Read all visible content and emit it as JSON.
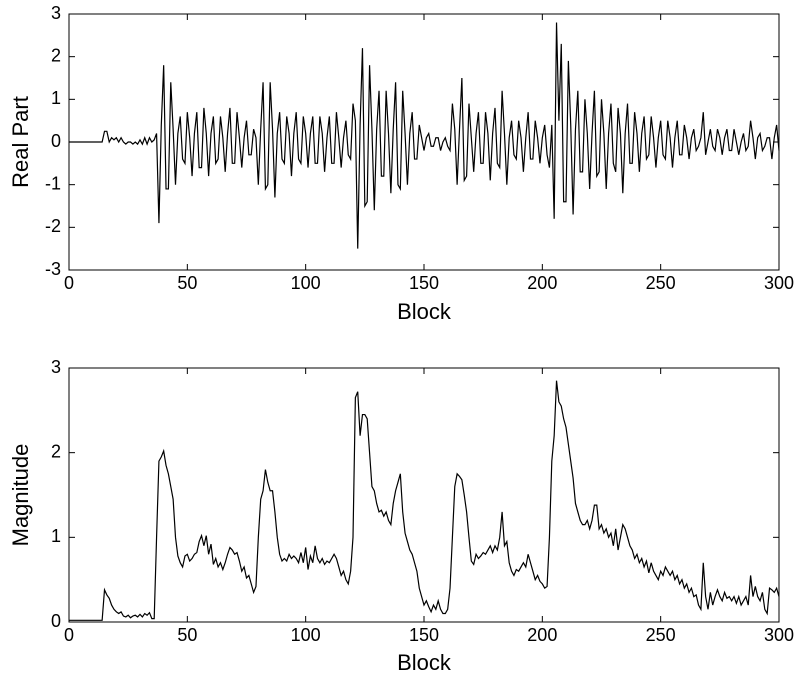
{
  "chart_data": [
    {
      "type": "line",
      "xlabel": "Block",
      "ylabel": "Real Part",
      "color": "#000000",
      "xlim": [
        0,
        300
      ],
      "ylim": [
        -3,
        3
      ],
      "xticks": [
        0,
        50,
        100,
        150,
        200,
        250,
        300
      ],
      "yticks": [
        -3,
        -2,
        -1,
        0,
        1,
        2,
        3
      ],
      "x": [
        0,
        1,
        2,
        3,
        4,
        5,
        6,
        7,
        8,
        9,
        10,
        11,
        12,
        13,
        14,
        15,
        16,
        17,
        18,
        19,
        20,
        21,
        22,
        23,
        24,
        25,
        26,
        27,
        28,
        29,
        30,
        31,
        32,
        33,
        34,
        35,
        36,
        37,
        38,
        39,
        40,
        41,
        42,
        43,
        44,
        45,
        46,
        47,
        48,
        49,
        50,
        51,
        52,
        53,
        54,
        55,
        56,
        57,
        58,
        59,
        60,
        61,
        62,
        63,
        64,
        65,
        66,
        67,
        68,
        69,
        70,
        71,
        72,
        73,
        74,
        75,
        76,
        77,
        78,
        79,
        80,
        81,
        82,
        83,
        84,
        85,
        86,
        87,
        88,
        89,
        90,
        91,
        92,
        93,
        94,
        95,
        96,
        97,
        98,
        99,
        100,
        101,
        102,
        103,
        104,
        105,
        106,
        107,
        108,
        109,
        110,
        111,
        112,
        113,
        114,
        115,
        116,
        117,
        118,
        119,
        120,
        121,
        122,
        123,
        124,
        125,
        126,
        127,
        128,
        129,
        130,
        131,
        132,
        133,
        134,
        135,
        136,
        137,
        138,
        139,
        140,
        141,
        142,
        143,
        144,
        145,
        146,
        147,
        148,
        149,
        150,
        151,
        152,
        153,
        154,
        155,
        156,
        157,
        158,
        159,
        160,
        161,
        162,
        163,
        164,
        165,
        166,
        167,
        168,
        169,
        170,
        171,
        172,
        173,
        174,
        175,
        176,
        177,
        178,
        179,
        180,
        181,
        182,
        183,
        184,
        185,
        186,
        187,
        188,
        189,
        190,
        191,
        192,
        193,
        194,
        195,
        196,
        197,
        198,
        199,
        200,
        201,
        202,
        203,
        204,
        205,
        206,
        207,
        208,
        209,
        210,
        211,
        212,
        213,
        214,
        215,
        216,
        217,
        218,
        219,
        220,
        221,
        222,
        223,
        224,
        225,
        226,
        227,
        228,
        229,
        230,
        231,
        232,
        233,
        234,
        235,
        236,
        237,
        238,
        239,
        240,
        241,
        242,
        243,
        244,
        245,
        246,
        247,
        248,
        249,
        250,
        251,
        252,
        253,
        254,
        255,
        256,
        257,
        258,
        259,
        260,
        261,
        262,
        263,
        264,
        265,
        266,
        267,
        268,
        269,
        270,
        271,
        272,
        273,
        274,
        275,
        276,
        277,
        278,
        279,
        280,
        281,
        282,
        283,
        284,
        285,
        286,
        287,
        288,
        289,
        290,
        291,
        292,
        293,
        294,
        295,
        296,
        297,
        298,
        299,
        300
      ],
      "values": [
        0,
        0,
        0,
        0,
        0,
        0,
        0,
        0,
        0,
        0,
        0,
        0,
        0,
        0,
        0,
        0.25,
        0.25,
        0,
        0.1,
        0.05,
        0.1,
        0,
        0.1,
        0,
        -0.05,
        0,
        0,
        -0.05,
        0,
        -0.05,
        0.05,
        -0.05,
        0.1,
        -0.05,
        0.1,
        0,
        0.05,
        0.2,
        -1.9,
        0.4,
        1.8,
        -1.1,
        -1.1,
        1.4,
        0.3,
        -1.0,
        0.2,
        0.6,
        -0.4,
        -0.5,
        0.7,
        0.1,
        -0.8,
        0.2,
        0.7,
        -0.6,
        -0.6,
        0.8,
        0.2,
        -0.8,
        0.2,
        0.6,
        -0.5,
        -0.4,
        0.6,
        0.1,
        -0.7,
        0.2,
        0.8,
        -0.5,
        -0.5,
        0.7,
        0.1,
        -0.6,
        0.1,
        0.5,
        -0.3,
        -0.3,
        0.3,
        0.1,
        -1.0,
        0.3,
        1.4,
        -1.1,
        -1.0,
        1.4,
        0.3,
        -1.3,
        0.2,
        0.7,
        -0.4,
        -0.5,
        0.6,
        0.2,
        -0.8,
        0.2,
        0.7,
        -0.4,
        -0.5,
        0.6,
        0.2,
        -0.6,
        0.2,
        0.6,
        -0.5,
        -0.5,
        0.6,
        0.2,
        -0.7,
        0.1,
        0.6,
        -0.5,
        -0.5,
        0.7,
        0.1,
        -0.6,
        0.1,
        0.5,
        -0.3,
        -0.4,
        0.9,
        0.5,
        -2.5,
        0.4,
        2.2,
        -1.5,
        -1.4,
        1.8,
        0.3,
        -1.6,
        0.3,
        1.2,
        -0.8,
        -0.8,
        1.2,
        0.2,
        -1.2,
        0.3,
        1.4,
        -1.0,
        -1.1,
        1.2,
        0.2,
        -1.0,
        0.2,
        0.7,
        -0.4,
        -0.4,
        0.4,
        0.1,
        -0.2,
        0.1,
        0.2,
        -0.1,
        -0.1,
        0.1,
        0.1,
        -0.2,
        0,
        0.1,
        -0.1,
        -0.2,
        0.9,
        0.3,
        -1.0,
        0.3,
        1.5,
        -0.9,
        -0.8,
        0.9,
        0.1,
        -0.7,
        0.2,
        0.7,
        -0.5,
        -0.5,
        0.7,
        0.2,
        -0.9,
        0.2,
        0.8,
        -0.5,
        -0.6,
        1.2,
        0.2,
        -1.0,
        0.1,
        0.5,
        -0.3,
        -0.4,
        0.5,
        0.1,
        -0.7,
        0.1,
        0.7,
        -0.4,
        -0.4,
        0.5,
        0.1,
        -0.5,
        0.1,
        0.4,
        -0.3,
        -0.6,
        0.4,
        -1.8,
        2.8,
        0.5,
        2.3,
        -1.4,
        -1.4,
        1.9,
        0.4,
        -1.7,
        0.3,
        1.2,
        -0.7,
        -0.7,
        1.0,
        0.2,
        -1.1,
        0.2,
        1.2,
        -0.8,
        -0.7,
        1.0,
        0.2,
        -1.1,
        0.2,
        0.9,
        -0.5,
        -0.7,
        0.8,
        0.2,
        -1.2,
        0.2,
        0.9,
        -0.5,
        -0.5,
        0.7,
        0.2,
        -0.7,
        0.2,
        0.6,
        -0.4,
        -0.3,
        0.6,
        0.1,
        -0.6,
        0.1,
        0.5,
        -0.3,
        -0.4,
        0.5,
        0.1,
        -0.6,
        0.1,
        0.5,
        -0.3,
        -0.3,
        0.4,
        0.1,
        -0.4,
        0.1,
        0.3,
        -0.2,
        -0.1,
        0.1,
        0.7,
        -0.3,
        0,
        0.3,
        -0.1,
        -0.2,
        0.3,
        0.1,
        -0.3,
        0.1,
        0.3,
        -0.2,
        -0.2,
        0.3,
        0,
        -0.3,
        0,
        0.2,
        -0.2,
        -0.1,
        0.5,
        0.1,
        -0.4,
        0.1,
        0.2,
        -0.2,
        -0.1,
        0.1,
        0.1,
        -0.4,
        0.1,
        0.4,
        -0.2
      ]
    },
    {
      "type": "line",
      "xlabel": "Block",
      "ylabel": "Magnitude",
      "color": "#000000",
      "xlim": [
        0,
        300
      ],
      "ylim": [
        0,
        3
      ],
      "xticks": [
        0,
        50,
        100,
        150,
        200,
        250,
        300
      ],
      "yticks": [
        0,
        1,
        2,
        3
      ],
      "x": [
        0,
        1,
        2,
        3,
        4,
        5,
        6,
        7,
        8,
        9,
        10,
        11,
        12,
        13,
        14,
        15,
        16,
        17,
        18,
        19,
        20,
        21,
        22,
        23,
        24,
        25,
        26,
        27,
        28,
        29,
        30,
        31,
        32,
        33,
        34,
        35,
        36,
        37,
        38,
        39,
        40,
        41,
        42,
        43,
        44,
        45,
        46,
        47,
        48,
        49,
        50,
        51,
        52,
        53,
        54,
        55,
        56,
        57,
        58,
        59,
        60,
        61,
        62,
        63,
        64,
        65,
        66,
        67,
        68,
        69,
        70,
        71,
        72,
        73,
        74,
        75,
        76,
        77,
        78,
        79,
        80,
        81,
        82,
        83,
        84,
        85,
        86,
        87,
        88,
        89,
        90,
        91,
        92,
        93,
        94,
        95,
        96,
        97,
        98,
        99,
        100,
        101,
        102,
        103,
        104,
        105,
        106,
        107,
        108,
        109,
        110,
        111,
        112,
        113,
        114,
        115,
        116,
        117,
        118,
        119,
        120,
        121,
        122,
        123,
        124,
        125,
        126,
        127,
        128,
        129,
        130,
        131,
        132,
        133,
        134,
        135,
        136,
        137,
        138,
        139,
        140,
        141,
        142,
        143,
        144,
        145,
        146,
        147,
        148,
        149,
        150,
        151,
        152,
        153,
        154,
        155,
        156,
        157,
        158,
        159,
        160,
        161,
        162,
        163,
        164,
        165,
        166,
        167,
        168,
        169,
        170,
        171,
        172,
        173,
        174,
        175,
        176,
        177,
        178,
        179,
        180,
        181,
        182,
        183,
        184,
        185,
        186,
        187,
        188,
        189,
        190,
        191,
        192,
        193,
        194,
        195,
        196,
        197,
        198,
        199,
        200,
        201,
        202,
        203,
        204,
        205,
        206,
        207,
        208,
        209,
        210,
        211,
        212,
        213,
        214,
        215,
        216,
        217,
        218,
        219,
        220,
        221,
        222,
        223,
        224,
        225,
        226,
        227,
        228,
        229,
        230,
        231,
        232,
        233,
        234,
        235,
        236,
        237,
        238,
        239,
        240,
        241,
        242,
        243,
        244,
        245,
        246,
        247,
        248,
        249,
        250,
        251,
        252,
        253,
        254,
        255,
        256,
        257,
        258,
        259,
        260,
        261,
        262,
        263,
        264,
        265,
        266,
        267,
        268,
        269,
        270,
        271,
        272,
        273,
        274,
        275,
        276,
        277,
        278,
        279,
        280,
        281,
        282,
        283,
        284,
        285,
        286,
        287,
        288,
        289,
        290,
        291,
        292,
        293,
        294,
        295,
        296,
        297,
        298,
        299,
        300
      ],
      "values": [
        0.02,
        0.02,
        0.02,
        0.02,
        0.02,
        0.02,
        0.02,
        0.02,
        0.02,
        0.02,
        0.02,
        0.02,
        0.02,
        0.02,
        0.02,
        0.38,
        0.32,
        0.28,
        0.2,
        0.15,
        0.12,
        0.1,
        0.12,
        0.07,
        0.06,
        0.08,
        0.05,
        0.07,
        0.08,
        0.06,
        0.09,
        0.06,
        0.1,
        0.08,
        0.11,
        0.04,
        0.04,
        1.0,
        1.9,
        1.95,
        2.02,
        1.85,
        1.75,
        1.6,
        1.45,
        1.0,
        0.78,
        0.7,
        0.65,
        0.78,
        0.8,
        0.72,
        0.75,
        0.8,
        0.82,
        0.95,
        1.02,
        0.9,
        1.02,
        0.8,
        0.92,
        0.68,
        0.75,
        0.65,
        0.7,
        0.62,
        0.7,
        0.8,
        0.88,
        0.85,
        0.8,
        0.82,
        0.72,
        0.6,
        0.65,
        0.52,
        0.55,
        0.45,
        0.35,
        0.42,
        1.0,
        1.45,
        1.55,
        1.8,
        1.65,
        1.55,
        1.55,
        1.3,
        1.0,
        0.8,
        0.72,
        0.75,
        0.72,
        0.8,
        0.75,
        0.78,
        0.75,
        0.7,
        0.82,
        0.7,
        0.88,
        0.62,
        0.78,
        0.7,
        0.9,
        0.75,
        0.7,
        0.75,
        0.68,
        0.72,
        0.7,
        0.75,
        0.8,
        0.75,
        0.65,
        0.55,
        0.6,
        0.5,
        0.45,
        0.6,
        1.0,
        2.65,
        2.72,
        2.2,
        2.45,
        2.45,
        2.4,
        2.0,
        1.6,
        1.55,
        1.4,
        1.3,
        1.32,
        1.25,
        1.3,
        1.2,
        1.15,
        1.4,
        1.55,
        1.65,
        1.75,
        1.3,
        1.05,
        0.95,
        0.85,
        0.8,
        0.7,
        0.6,
        0.4,
        0.3,
        0.2,
        0.25,
        0.18,
        0.12,
        0.2,
        0.15,
        0.25,
        0.15,
        0.1,
        0.1,
        0.15,
        0.4,
        1.0,
        1.6,
        1.75,
        1.72,
        1.68,
        1.5,
        1.3,
        1.0,
        0.72,
        0.68,
        0.8,
        0.75,
        0.78,
        0.82,
        0.8,
        0.85,
        0.9,
        0.82,
        0.9,
        0.85,
        1.0,
        1.3,
        0.9,
        0.95,
        0.7,
        0.6,
        0.55,
        0.62,
        0.6,
        0.65,
        0.7,
        0.65,
        0.8,
        0.7,
        0.6,
        0.5,
        0.55,
        0.48,
        0.45,
        0.4,
        0.42,
        1.0,
        1.9,
        2.2,
        2.85,
        2.6,
        2.55,
        2.4,
        2.3,
        2.1,
        1.9,
        1.7,
        1.4,
        1.3,
        1.2,
        1.15,
        1.15,
        1.2,
        1.1,
        1.2,
        1.38,
        1.38,
        1.1,
        1.15,
        1.05,
        1.1,
        1.0,
        1.05,
        0.9,
        1.1,
        0.85,
        1.0,
        1.15,
        1.1,
        1.0,
        0.9,
        0.85,
        0.75,
        0.8,
        0.7,
        0.75,
        0.65,
        0.72,
        0.58,
        0.7,
        0.6,
        0.55,
        0.5,
        0.6,
        0.55,
        0.65,
        0.6,
        0.55,
        0.6,
        0.5,
        0.55,
        0.45,
        0.5,
        0.4,
        0.45,
        0.35,
        0.4,
        0.3,
        0.32,
        0.2,
        0.15,
        0.7,
        0.3,
        0.15,
        0.35,
        0.2,
        0.3,
        0.38,
        0.3,
        0.25,
        0.35,
        0.28,
        0.3,
        0.25,
        0.3,
        0.22,
        0.3,
        0.2,
        0.25,
        0.3,
        0.2,
        0.55,
        0.3,
        0.42,
        0.3,
        0.25,
        0.35,
        0.15,
        0.1,
        0.4,
        0.38,
        0.35,
        0.4,
        0.3
      ]
    }
  ]
}
